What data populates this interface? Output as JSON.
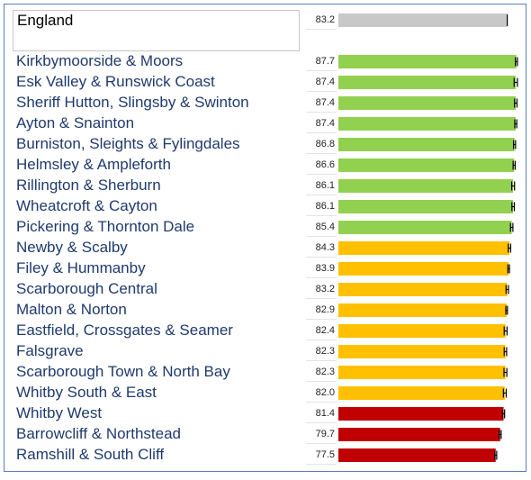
{
  "chart_data": {
    "type": "bar",
    "orientation": "horizontal",
    "categories": [
      "England",
      "Kirkbymoorside & Moors",
      "Esk Valley & Runswick Coast",
      "Sheriff Hutton, Slingsby & Swinton",
      "Ayton & Snainton",
      "Burniston, Sleights & Fylingdales",
      "Helmsley & Ampleforth",
      "Rillington & Sherburn",
      "Wheatcroft & Cayton",
      "Pickering & Thornton Dale",
      "Newby & Scalby",
      "Filey & Hummanby",
      "Scarborough Central",
      "Malton & Norton",
      "Eastfield, Crossgates & Seamer",
      "Falsgrave",
      "Scarborough Town & North Bay",
      "Whitby South & East",
      "Whitby West",
      "Barrowcliff & Northstead",
      "Ramshill & South Cliff"
    ],
    "values": [
      83.2,
      87.7,
      87.4,
      87.4,
      87.4,
      86.8,
      86.6,
      86.1,
      86.1,
      85.4,
      84.3,
      83.9,
      83.2,
      82.9,
      82.4,
      82.3,
      82.3,
      82.0,
      81.4,
      79.7,
      77.5
    ],
    "value_labels": [
      "83.2",
      "87.7",
      "87.4",
      "87.4",
      "87.4",
      "86.8",
      "86.6",
      "86.1",
      "86.1",
      "85.4",
      "84.3",
      "83.9",
      "83.2",
      "82.9",
      "82.4",
      "82.3",
      "82.3",
      "82.0",
      "81.4",
      "79.7",
      "77.5"
    ],
    "ci_low": [
      83.1,
      87.2,
      86.6,
      86.8,
      86.9,
      86.3,
      86.1,
      85.4,
      85.5,
      84.8,
      83.7,
      83.5,
      82.6,
      82.5,
      81.7,
      81.7,
      81.6,
      81.3,
      80.9,
      79.2,
      77.0
    ],
    "ci_high": [
      83.3,
      88.2,
      88.2,
      88.0,
      87.9,
      87.3,
      87.1,
      86.8,
      86.7,
      86.0,
      84.9,
      84.3,
      83.8,
      83.3,
      83.1,
      82.9,
      83.0,
      82.7,
      81.9,
      80.2,
      78.0
    ],
    "bar_colors": [
      "#c8c8c8",
      "#92d050",
      "#92d050",
      "#92d050",
      "#92d050",
      "#92d050",
      "#92d050",
      "#92d050",
      "#92d050",
      "#92d050",
      "#ffc000",
      "#ffc000",
      "#ffc000",
      "#ffc000",
      "#ffc000",
      "#ffc000",
      "#ffc000",
      "#ffc000",
      "#c00000",
      "#c00000",
      "#c00000"
    ],
    "xlim": [
      0,
      88.7
    ],
    "grid": false
  }
}
